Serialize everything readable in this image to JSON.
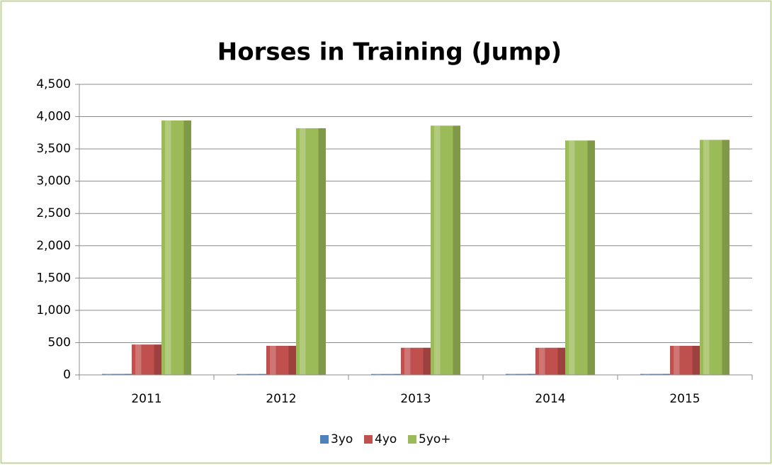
{
  "chart_data": {
    "type": "bar",
    "title": "Horses in Training (Jump)",
    "categories": [
      "2011",
      "2012",
      "2013",
      "2014",
      "2015"
    ],
    "series": [
      {
        "name": "3yo",
        "color": "#4f81bd",
        "values": [
          15,
          14,
          14,
          15,
          15
        ]
      },
      {
        "name": "4yo",
        "color": "#c0504d",
        "values": [
          470,
          450,
          420,
          420,
          450
        ]
      },
      {
        "name": "5yo+",
        "color": "#9bbb59",
        "values": [
          3940,
          3820,
          3860,
          3630,
          3640
        ]
      }
    ],
    "ylim": [
      0,
      4500
    ],
    "yticks": [
      0,
      500,
      {
        "value": 1000,
        "label": "1,000"
      },
      {
        "value": 1500,
        "label": "1,500"
      },
      {
        "value": 2000,
        "label": "2,000"
      },
      {
        "value": 2500,
        "label": "2,500"
      },
      {
        "value": 3000,
        "label": "3,000"
      },
      {
        "value": 3500,
        "label": "3,500"
      },
      {
        "value": 4000,
        "label": "4,000"
      },
      {
        "value": 4500,
        "label": "4,500"
      }
    ],
    "grid": true,
    "legend": "bottom"
  }
}
